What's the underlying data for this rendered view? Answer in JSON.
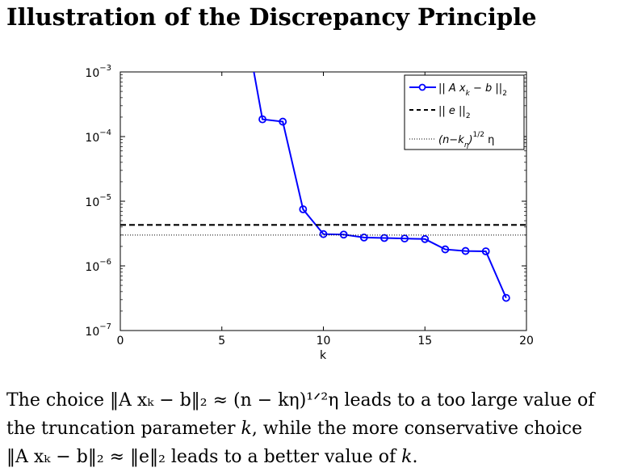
{
  "title": "Illustration of the Discrepancy Principle",
  "caption": {
    "line1_prefix": "The choice ",
    "line1_math_a": "‖A xₖ − b‖₂ ≈ (n − kη)¹ᐟ²η",
    "line1_suffix": " leads to a too large value of",
    "line2_prefix": "the truncation parameter ",
    "line2_k": "k",
    "line2_suffix": ", while the more conservative choice",
    "line3_math": "‖A xₖ − b‖₂ ≈ ‖e‖₂",
    "line3_mid": " leads to a better value of ",
    "line3_k": "k",
    "line3_end": "."
  },
  "chart_data": {
    "type": "line",
    "xlabel": "k",
    "ylabel": "",
    "xlim": [
      0,
      20
    ],
    "ylim": [
      1e-07,
      0.001
    ],
    "yscale": "log",
    "xticks": [
      0,
      5,
      10,
      15,
      20
    ],
    "yticks": [
      {
        "base": "10",
        "exp": "−3",
        "value": 0.001
      },
      {
        "base": "10",
        "exp": "−4",
        "value": 0.0001
      },
      {
        "base": "10",
        "exp": "−5",
        "value": 1e-05
      },
      {
        "base": "10",
        "exp": "−6",
        "value": 1e-06
      },
      {
        "base": "10",
        "exp": "−7",
        "value": 1e-07
      }
    ],
    "grid": false,
    "legend_position": "top-right",
    "series": [
      {
        "name": "|| A x_k − b ||_2",
        "color": "#0000ff",
        "style": "solid-circle-markers",
        "x": [
          6.2,
          7,
          8,
          9,
          10,
          11,
          12,
          13,
          14,
          15,
          16,
          17,
          18,
          19
        ],
        "y": [
          0.0045,
          0.000185,
          0.00017,
          7.5e-06,
          3.1e-06,
          3.05e-06,
          2.75e-06,
          2.7e-06,
          2.65e-06,
          2.6e-06,
          1.8e-06,
          1.7e-06,
          1.68e-06,
          3.2e-07
        ]
      },
      {
        "name": "|| e ||_2",
        "color": "#000000",
        "style": "dashed",
        "value": 4.3e-06
      },
      {
        "name": "(n−k_η)^1/2 η",
        "color": "#000000",
        "style": "dotted",
        "value": 3e-06
      }
    ]
  }
}
